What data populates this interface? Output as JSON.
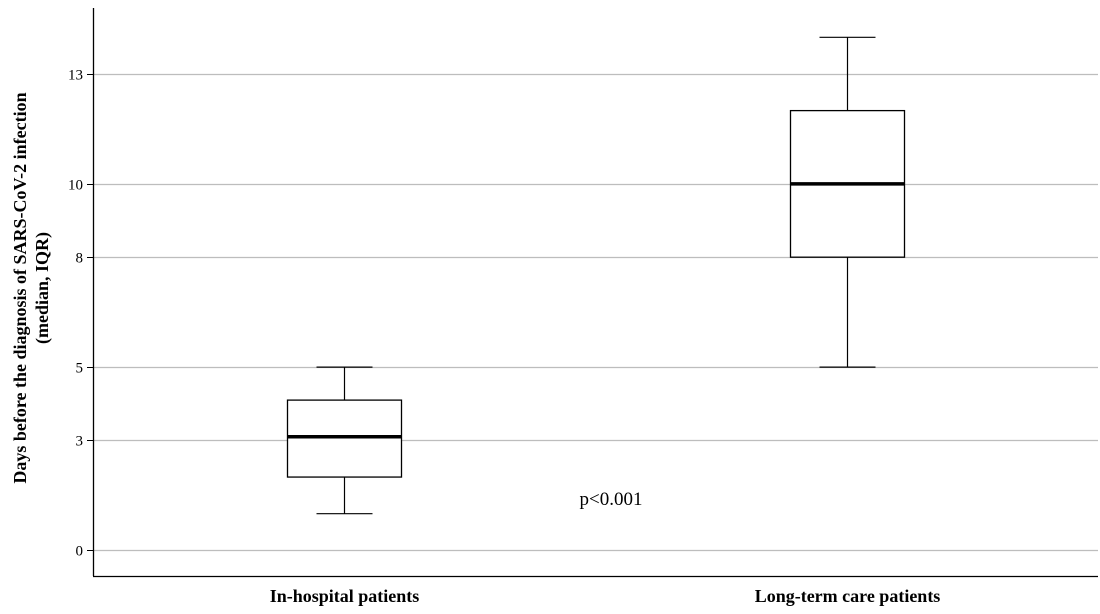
{
  "chart_data": {
    "type": "box",
    "title": "",
    "xlabel": "",
    "ylabel": "Days before the diagnosis of SARS-CoV-2 infection",
    "ylabel_line2": "(median, IQR)",
    "y_ticks": [
      0,
      3,
      5,
      8,
      10,
      13
    ],
    "ylim": [
      -0.7,
      14.8
    ],
    "grid": true,
    "categories": [
      "In-hospital patients",
      "Long-term care patients"
    ],
    "boxes": [
      {
        "category": "In-hospital patients",
        "whisker_low": 1,
        "q1": 2,
        "median": 3.1,
        "q3": 4.1,
        "whisker_high": 5
      },
      {
        "category": "Long-term care patients",
        "whisker_low": 5,
        "q1": 8,
        "median": 10,
        "q3": 12,
        "whisker_high": 14
      }
    ],
    "annotation": "p<0.001"
  }
}
